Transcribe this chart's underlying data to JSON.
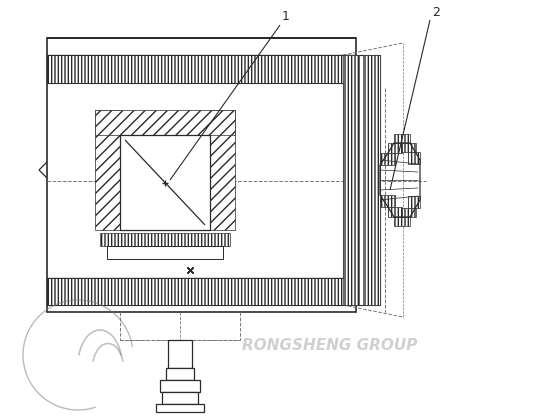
{
  "bg_color": "#ffffff",
  "lc": "#2a2a2a",
  "dc": "#777777",
  "wm_color": "#c8c8c8",
  "label1": "1",
  "label2": "2",
  "watermark": "RONGSHENG GROUP",
  "fig_w": 5.6,
  "fig_h": 4.2,
  "dpi": 100
}
